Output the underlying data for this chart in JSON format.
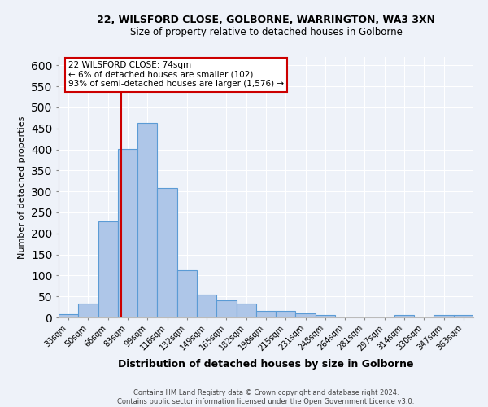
{
  "title1": "22, WILSFORD CLOSE, GOLBORNE, WARRINGTON, WA3 3XN",
  "title2": "Size of property relative to detached houses in Golborne",
  "xlabel": "Distribution of detached houses by size in Golborne",
  "ylabel": "Number of detached properties",
  "footer1": "Contains HM Land Registry data © Crown copyright and database right 2024.",
  "footer2": "Contains public sector information licensed under the Open Government Licence v3.0.",
  "annotation_line1": "22 WILSFORD CLOSE: 74sqm",
  "annotation_line2": "← 6% of detached houses are smaller (102)",
  "annotation_line3": "93% of semi-detached houses are larger (1,576) →",
  "bar_labels": [
    "33sqm",
    "50sqm",
    "66sqm",
    "83sqm",
    "99sqm",
    "116sqm",
    "132sqm",
    "149sqm",
    "165sqm",
    "182sqm",
    "198sqm",
    "215sqm",
    "231sqm",
    "248sqm",
    "264sqm",
    "281sqm",
    "297sqm",
    "314sqm",
    "330sqm",
    "347sqm",
    "363sqm"
  ],
  "bar_values": [
    7,
    32,
    228,
    402,
    463,
    308,
    112,
    54,
    40,
    32,
    15,
    15,
    10,
    5,
    0,
    0,
    0,
    5,
    0,
    5,
    5
  ],
  "bar_color": "#aec6e8",
  "bar_edge_color": "#5b9bd5",
  "vline_x": 2.65,
  "vline_color": "#cc0000",
  "ylim": [
    0,
    620
  ],
  "yticks": [
    0,
    50,
    100,
    150,
    200,
    250,
    300,
    350,
    400,
    450,
    500,
    550,
    600
  ],
  "annotation_box_edge": "#cc0000",
  "bg_color": "#eef2f9",
  "grid_color": "white",
  "title1_fontsize": 9,
  "title2_fontsize": 8.5,
  "ylabel_fontsize": 8,
  "xlabel_fontsize": 9,
  "tick_fontsize": 7,
  "footer_fontsize": 6
}
